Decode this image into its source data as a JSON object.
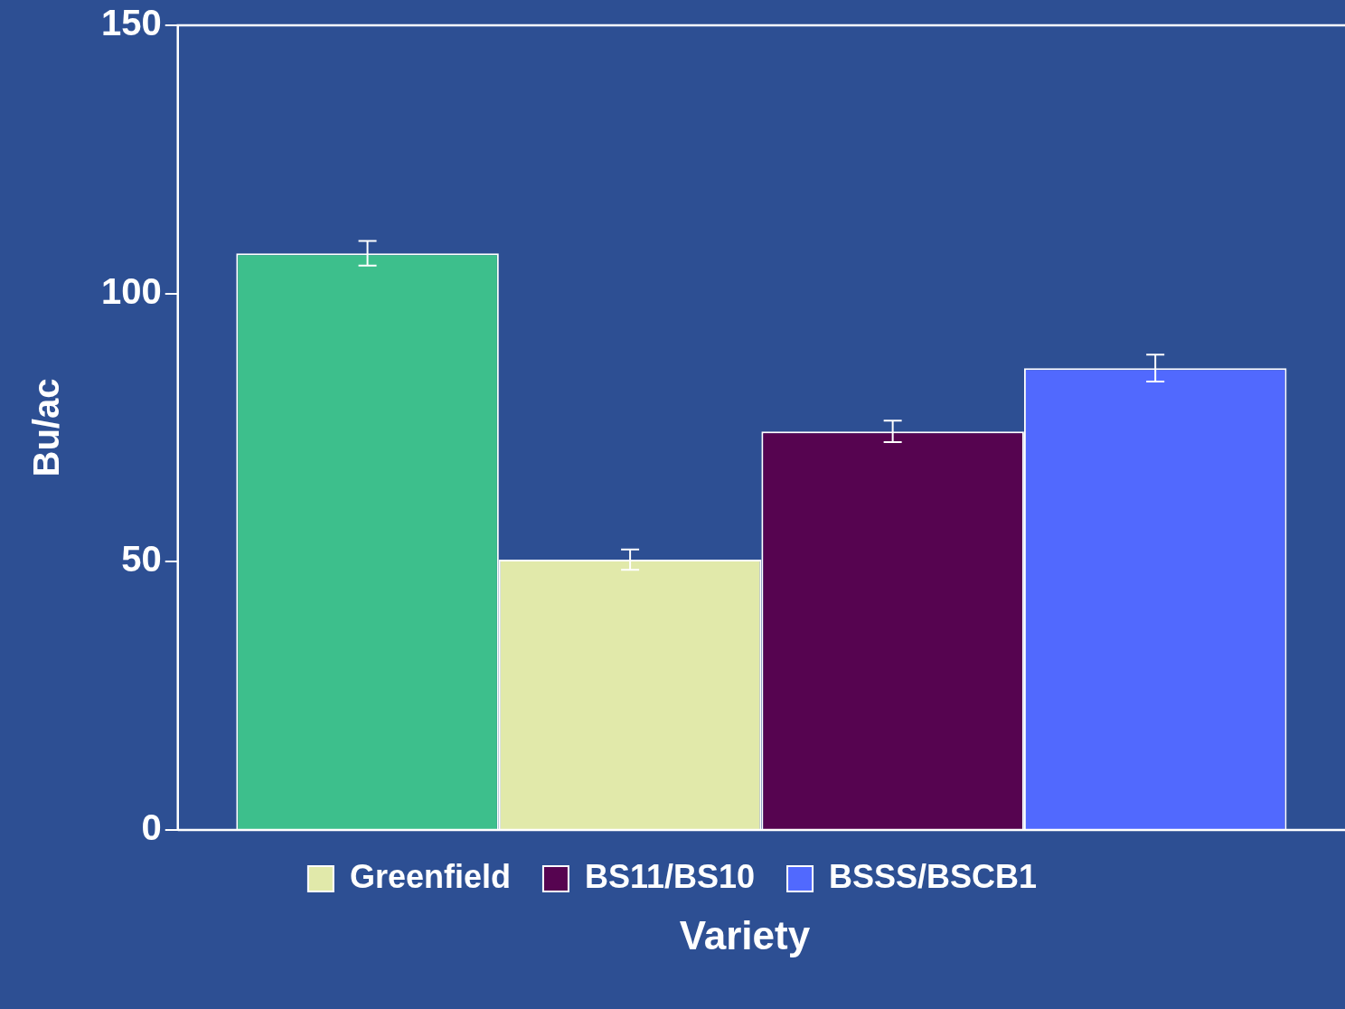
{
  "chart_data": {
    "type": "bar",
    "xlabel": "Variety",
    "ylabel": "Bu/ac",
    "categories": [
      null
    ],
    "series": [
      {
        "color": "#3dbf8c",
        "values": [
          107.5
        ],
        "errors": [
          2.3
        ]
      },
      {
        "name": "Greenfield",
        "color": "#e1e9aa",
        "values": [
          50.4
        ],
        "errors": [
          1.9
        ]
      },
      {
        "name": "BS11/BS10",
        "color": "#560450",
        "values": [
          74.3
        ],
        "errors": [
          2.0
        ]
      },
      {
        "name": "BSSS/BSCB1",
        "color": "#5169fe",
        "values": [
          86.1
        ],
        "errors": [
          2.5
        ]
      }
    ],
    "ylim": [
      0,
      150
    ],
    "yticks": [
      0,
      50,
      100,
      150
    ],
    "grid": false,
    "legend": "bottom"
  }
}
